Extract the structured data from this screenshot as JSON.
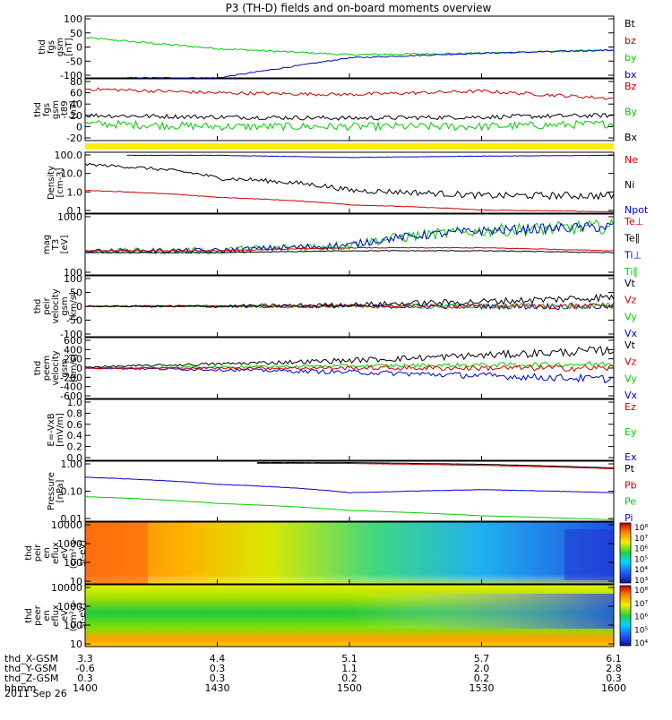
{
  "title": "P3 (TH-D) fields and on-board moments overview",
  "colors": {
    "black": "#000000",
    "red": "#cc0000",
    "green": "#00cc00",
    "blue": "#0000cc",
    "yellow": "#ffee00"
  },
  "panels": [
    {
      "ylabel": [
        "thd",
        "fgs",
        "gsm",
        "[nT]"
      ],
      "ticks": [
        "100",
        "50",
        "0",
        "-50",
        "-100"
      ],
      "ylim": [
        -100,
        100
      ],
      "legend": [
        {
          "text": "Bt",
          "color": "black"
        },
        {
          "text": "bz",
          "color": "red"
        },
        {
          "text": "by",
          "color": "green"
        },
        {
          "text": "bx",
          "color": "blue"
        }
      ]
    },
    {
      "ylabel": [
        "thd",
        "fgs",
        "gsm",
        "-t89",
        "[nT]"
      ],
      "ticks": [
        "80",
        "60",
        "40",
        "20",
        "0",
        "-20"
      ],
      "ylim": [
        -30,
        80
      ],
      "legend": [
        {
          "text": "Bz",
          "color": "red"
        },
        {
          "text": "By",
          "color": "green"
        },
        {
          "text": "Bx",
          "color": "black"
        }
      ]
    },
    {
      "ylabel": [
        "Density",
        "[cm-3]"
      ],
      "ticks": [
        "100.0",
        "10.0",
        "1.0",
        "0.1"
      ],
      "ylim": [
        0.1,
        300
      ],
      "legend": [
        {
          "text": "Ne",
          "color": "red"
        },
        {
          "text": "Ni",
          "color": "black"
        },
        {
          "text": "Npot",
          "color": "blue"
        }
      ]
    },
    {
      "ylabel": [
        "mag",
        "T3",
        "[eV]"
      ],
      "ticks": [
        "1000",
        "100"
      ],
      "ylim": [
        30,
        10000
      ],
      "legend": [
        {
          "text": "Te⊥",
          "color": "red"
        },
        {
          "text": "Te∥",
          "color": "black"
        },
        {
          "text": "Ti⊥",
          "color": "blue"
        },
        {
          "text": "Ti∥",
          "color": "green"
        }
      ]
    },
    {
      "ylabel": [
        "thd",
        "peir",
        "velocity",
        "gsm",
        "[km/s]"
      ],
      "ticks": [
        "100",
        "50",
        "0",
        "-50",
        "-100"
      ],
      "ylim": [
        -100,
        100
      ],
      "legend": [
        {
          "text": "Vt",
          "color": "black"
        },
        {
          "text": "Vz",
          "color": "red"
        },
        {
          "text": "Vy",
          "color": "green"
        },
        {
          "text": "Vx",
          "color": "blue"
        }
      ]
    },
    {
      "ylabel": [
        "thd",
        "peem",
        "velocity",
        "gsm",
        "[km/s]"
      ],
      "ticks": [
        "600",
        "400",
        "200",
        "0",
        "-200",
        "-400",
        "-600"
      ],
      "ylim": [
        -600,
        600
      ],
      "legend": [
        {
          "text": "Vt",
          "color": "black"
        },
        {
          "text": "Vz",
          "color": "red"
        },
        {
          "text": "Vy",
          "color": "green"
        },
        {
          "text": "Vx",
          "color": "blue"
        }
      ]
    },
    {
      "ylabel": [
        "E=-VxB",
        "[mV/m]"
      ],
      "ticks": [
        "1.0",
        "0.8",
        "0.6",
        "0.4",
        "0.2",
        "0.0"
      ],
      "ylim": [
        0,
        1
      ],
      "legend": [
        {
          "text": "Ez",
          "color": "red"
        },
        {
          "text": "Ey",
          "color": "green"
        },
        {
          "text": "Ex",
          "color": "blue"
        }
      ]
    },
    {
      "ylabel": [
        "Pressure",
        "[nPa]"
      ],
      "ticks": [
        "1.00",
        "0.10",
        "0.01"
      ],
      "ylim": [
        0.005,
        12
      ],
      "legend": [
        {
          "text": "Pt",
          "color": "black"
        },
        {
          "text": "Pb",
          "color": "red"
        },
        {
          "text": "Pe",
          "color": "green"
        },
        {
          "text": "Pi",
          "color": "blue"
        }
      ]
    },
    {
      "ylabel": [
        "thd",
        "peir",
        "en",
        "eflux",
        "eV",
        "(cm²-s-",
        "sr-eV)"
      ],
      "ticks": [
        "10000",
        "1000",
        "100",
        "10"
      ],
      "ylim": [
        5,
        30000
      ],
      "cbticks": [
        "10⁸",
        "10⁷",
        "10⁶",
        "10⁵",
        "10⁴",
        "10³"
      ]
    },
    {
      "ylabel": [
        "thd",
        "peer",
        "en",
        "eflux",
        "eV",
        "(cm²-s-",
        "sr-eV)"
      ],
      "ticks": [
        "10000",
        "1000",
        "100",
        "10"
      ],
      "ylim": [
        5,
        30000
      ],
      "cbticks": [
        "10⁸",
        "10⁷",
        "10⁶",
        "10⁵",
        "10⁴"
      ]
    }
  ],
  "bottom_axis": {
    "rows": [
      {
        "label": "thd_X-GSM",
        "values": [
          "3.3",
          "4.4",
          "5.1",
          "5.7",
          "6.1"
        ]
      },
      {
        "label": "thd_Y-GSM",
        "values": [
          "-0.6",
          "0.3",
          "1.1",
          "2.0",
          "2.8"
        ]
      },
      {
        "label": "thd_Z-GSM",
        "values": [
          "0.3",
          "0.3",
          "0.2",
          "0.2",
          "0.3"
        ]
      },
      {
        "label": "hhmm",
        "values": [
          "1400",
          "1430",
          "1500",
          "1530",
          "1600"
        ]
      }
    ],
    "date": "2011 Sep 26"
  },
  "chart_data": {
    "type": "line",
    "x": [
      "1400",
      "1430",
      "1500",
      "1530",
      "1600"
    ],
    "series": [
      {
        "name": "by",
        "panel": 0,
        "values": [
          30,
          -5,
          -25,
          -20,
          -10
        ]
      },
      {
        "name": "bx",
        "panel": 0,
        "values": [
          null,
          -100,
          -35,
          -20,
          -10
        ]
      },
      {
        "name": "Bz",
        "panel": 1,
        "values": [
          62,
          55,
          52,
          58,
          45
        ]
      },
      {
        "name": "Bx",
        "panel": 1,
        "values": [
          15,
          12,
          10,
          12,
          15
        ]
      },
      {
        "name": "By",
        "panel": 1,
        "values": [
          0,
          -5,
          -5,
          -5,
          0
        ]
      },
      {
        "name": "Ni",
        "panel": 2,
        "values": [
          60,
          10,
          2,
          1,
          1
        ]
      },
      {
        "name": "Ne",
        "panel": 2,
        "values": [
          2,
          0.8,
          0.3,
          0.15,
          0.12
        ]
      },
      {
        "name": "Npot",
        "panel": 2,
        "values": [
          null,
          200,
          150,
          180,
          200
        ]
      },
      {
        "name": "Te⊥",
        "panel": 3,
        "values": [
          300,
          300,
          400,
          400,
          300
        ]
      },
      {
        "name": "Ti⊥",
        "panel": 3,
        "values": [
          300,
          300,
          500,
          2000,
          3000
        ]
      },
      {
        "name": "Pt",
        "panel": 7,
        "values": [
          null,
          null,
          10,
          8,
          5
        ]
      },
      {
        "name": "Pi",
        "panel": 7,
        "values": [
          1.5,
          0.6,
          0.2,
          0.3,
          0.2
        ]
      },
      {
        "name": "Pe",
        "panel": 7,
        "values": [
          0.12,
          0.05,
          0.02,
          0.01,
          0.006
        ]
      }
    ]
  }
}
